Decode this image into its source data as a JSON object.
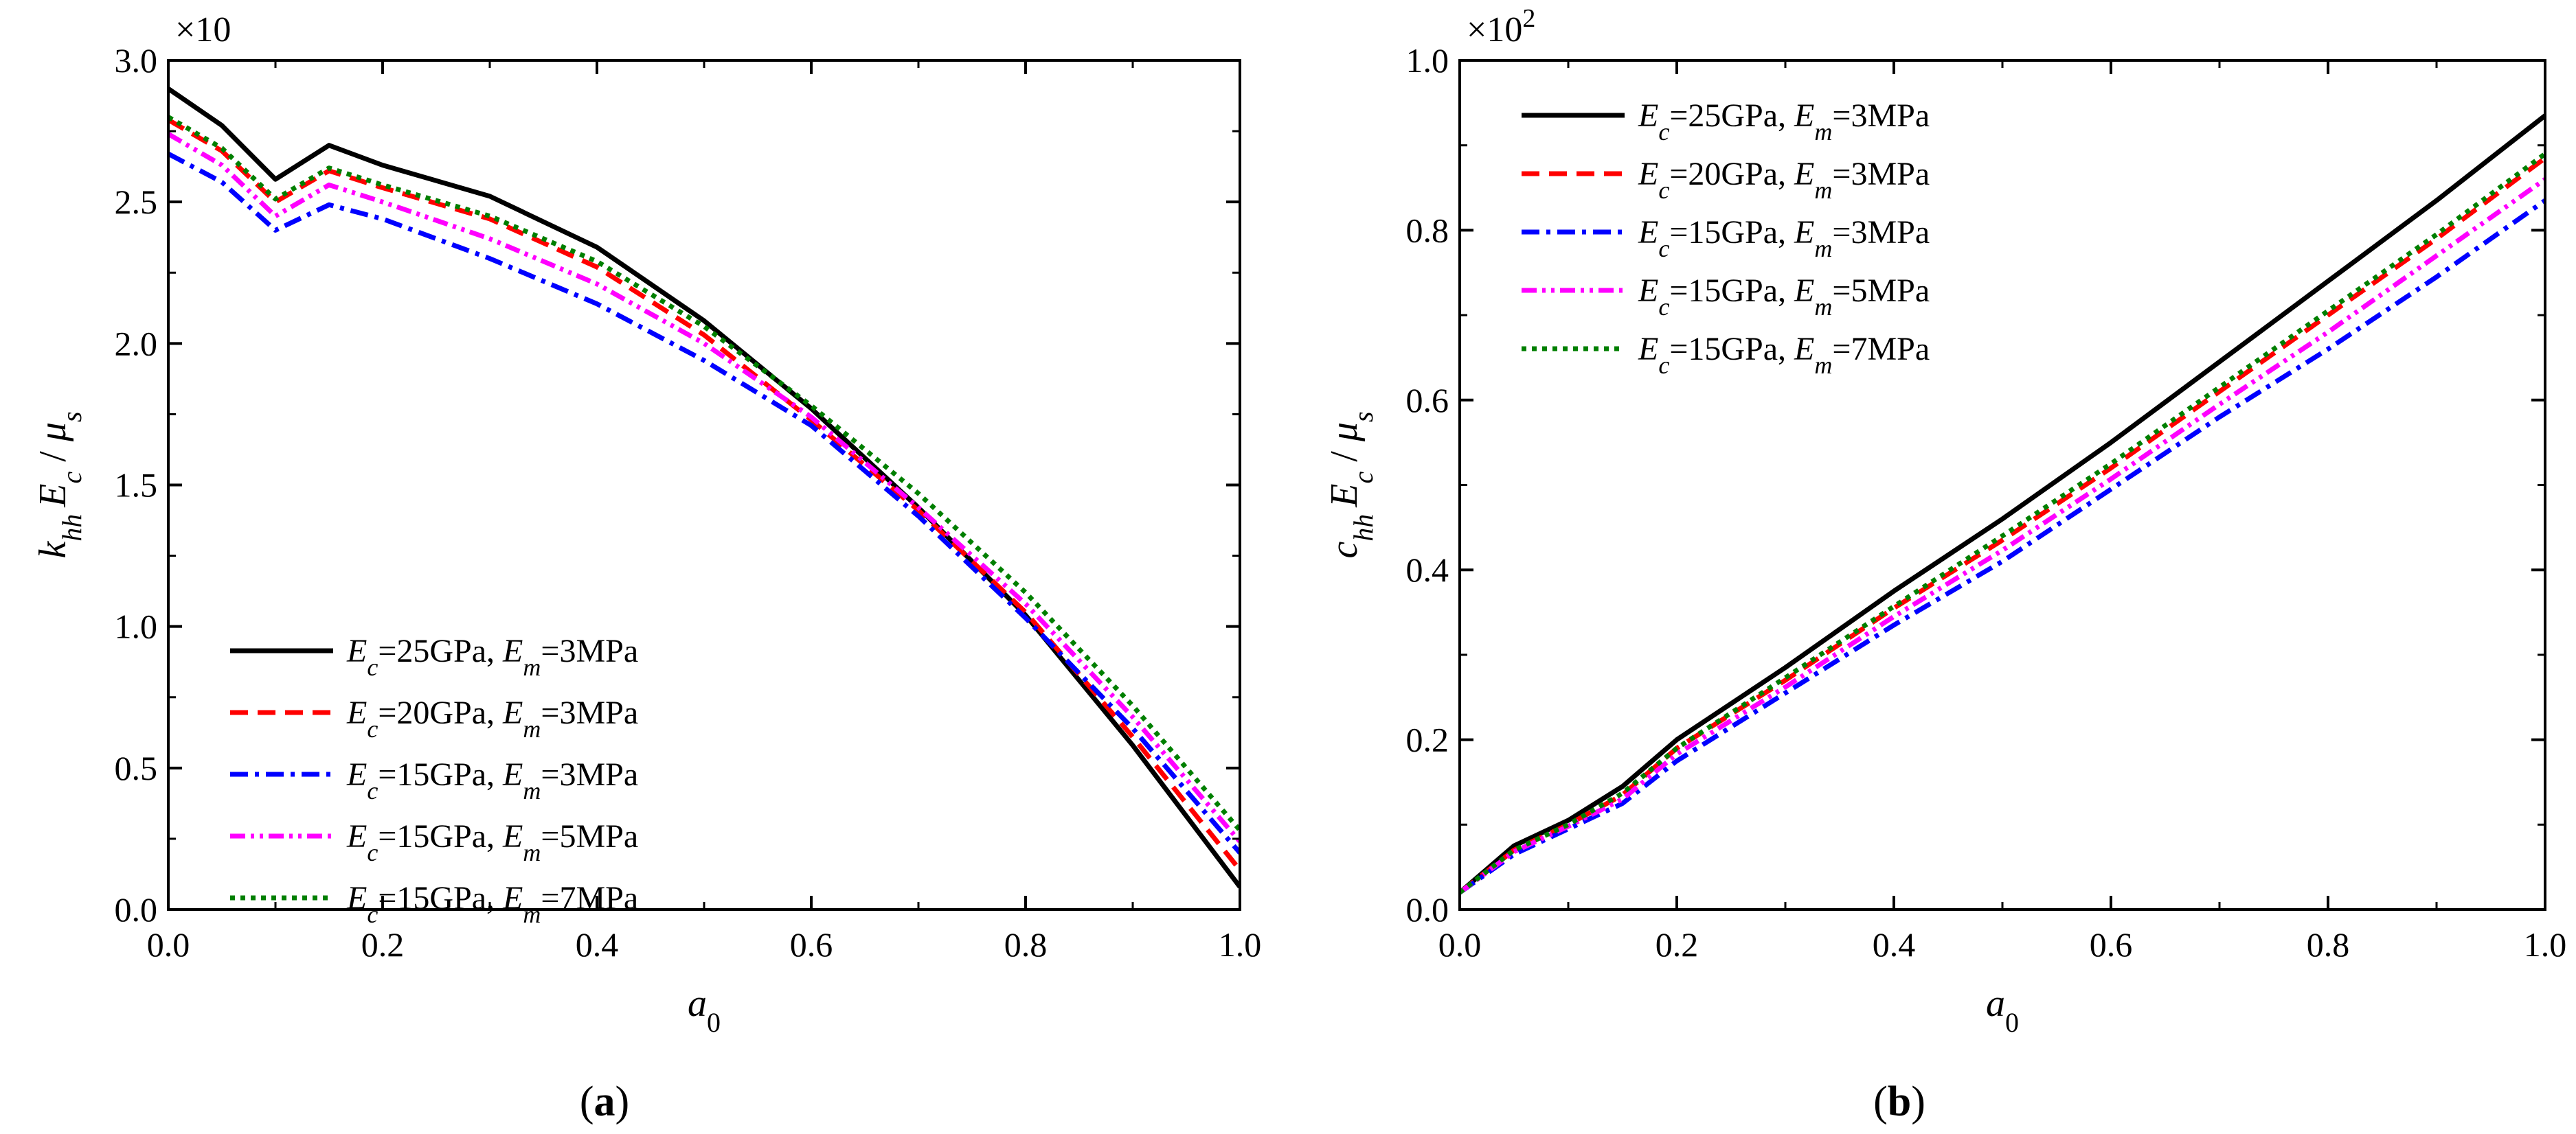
{
  "chart_data": [
    {
      "type": "line",
      "panel": "(a)",
      "panel_parts": {
        "open": "(",
        "letter": "a",
        "close": ")"
      },
      "ylabel": "k_hh E_c / μ_s",
      "ylabel_parts": {
        "a": "k",
        "a_sub": "hh",
        "b": "E",
        "b_sub": "c",
        "sep": " / ",
        "c": "μ",
        "c_sub": "s"
      },
      "xlabel": "a_0",
      "xlabel_parts": {
        "base": "a",
        "sub": "0"
      },
      "multiplier": "×10",
      "multiplier_parts": {
        "base": "×10",
        "exp": ""
      },
      "xlim": [
        0,
        1.0
      ],
      "ylim": [
        0,
        3.0
      ],
      "xticks": [
        "0.0",
        "0.2",
        "0.4",
        "0.6",
        "0.8",
        "1.0"
      ],
      "yticks": [
        "0.0",
        "0.5",
        "1.0",
        "1.5",
        "2.0",
        "2.5",
        "3.0"
      ],
      "legend_position": "lower-left",
      "series": [
        {
          "name": "Ec=25GPa, Em=3MPa",
          "label_parts": [
            "E",
            "c",
            "=25GPa, ",
            "E",
            "m",
            "=3MPa"
          ],
          "color": "#000000",
          "dash": "solid",
          "x": [
            0,
            0.05,
            0.1,
            0.15,
            0.2,
            0.3,
            0.4,
            0.5,
            0.6,
            0.7,
            0.8,
            0.9,
            1.0
          ],
          "y": [
            2.9,
            2.77,
            2.58,
            2.7,
            2.63,
            2.52,
            2.34,
            2.08,
            1.77,
            1.42,
            1.04,
            0.58,
            0.08
          ]
        },
        {
          "name": "Ec=20GPa, Em=3MPa",
          "label_parts": [
            "E",
            "c",
            "=20GPa, ",
            "E",
            "m",
            "=3MPa"
          ],
          "color": "#ff0000",
          "dash": "dash",
          "x": [
            0,
            0.05,
            0.1,
            0.15,
            0.2,
            0.3,
            0.4,
            0.5,
            0.6,
            0.7,
            0.8,
            0.9,
            1.0
          ],
          "y": [
            2.79,
            2.68,
            2.5,
            2.61,
            2.55,
            2.44,
            2.27,
            2.03,
            1.73,
            1.41,
            1.05,
            0.61,
            0.14
          ]
        },
        {
          "name": "Ec=15GPa, Em=3MPa",
          "label_parts": [
            "E",
            "c",
            "=15GPa, ",
            "E",
            "m",
            "=3MPa"
          ],
          "color": "#0000ff",
          "dash": "dashdot",
          "x": [
            0,
            0.05,
            0.1,
            0.15,
            0.2,
            0.3,
            0.4,
            0.5,
            0.6,
            0.7,
            0.8,
            0.9,
            1.0
          ],
          "y": [
            2.67,
            2.57,
            2.4,
            2.49,
            2.44,
            2.3,
            2.14,
            1.94,
            1.71,
            1.39,
            1.03,
            0.64,
            0.2
          ]
        },
        {
          "name": "Ec=15GPa, Em=5MPa",
          "label_parts": [
            "E",
            "c",
            "=15GPa, ",
            "E",
            "m",
            "=5MPa"
          ],
          "color": "#ff00ff",
          "dash": "dashdotdot",
          "x": [
            0,
            0.05,
            0.1,
            0.15,
            0.2,
            0.3,
            0.4,
            0.5,
            0.6,
            0.7,
            0.8,
            0.9,
            1.0
          ],
          "y": [
            2.74,
            2.63,
            2.45,
            2.56,
            2.5,
            2.37,
            2.21,
            2.0,
            1.74,
            1.42,
            1.08,
            0.68,
            0.24
          ]
        },
        {
          "name": "Ec=15GPa, Em=7MPa",
          "label_parts": [
            "E",
            "c",
            "=15GPa, ",
            "E",
            "m",
            "=7MPa"
          ],
          "color": "#007f00",
          "dash": "dot",
          "x": [
            0,
            0.05,
            0.1,
            0.15,
            0.2,
            0.3,
            0.4,
            0.5,
            0.6,
            0.7,
            0.8,
            0.9,
            1.0
          ],
          "y": [
            2.8,
            2.69,
            2.51,
            2.62,
            2.56,
            2.45,
            2.29,
            2.06,
            1.78,
            1.47,
            1.12,
            0.72,
            0.28
          ]
        }
      ]
    },
    {
      "type": "line",
      "panel": "(b)",
      "panel_parts": {
        "open": "(",
        "letter": "b",
        "close": ")"
      },
      "ylabel": "c_hh E_c / μ_s",
      "ylabel_parts": {
        "a": "c",
        "a_sub": "hh",
        "b": "E",
        "b_sub": "c",
        "sep": " / ",
        "c": "μ",
        "c_sub": "s"
      },
      "xlabel": "a_0",
      "xlabel_parts": {
        "base": "a",
        "sub": "0"
      },
      "multiplier": "×10^2",
      "multiplier_parts": {
        "base": "×10",
        "exp": "2"
      },
      "xlim": [
        0,
        1.0
      ],
      "ylim": [
        0,
        1.0
      ],
      "xticks": [
        "0.0",
        "0.2",
        "0.4",
        "0.6",
        "0.8",
        "1.0"
      ],
      "yticks": [
        "0.0",
        "0.2",
        "0.4",
        "0.6",
        "0.8",
        "1.0"
      ],
      "legend_position": "top-left",
      "series": [
        {
          "name": "Ec=25GPa, Em=3MPa",
          "label_parts": [
            "E",
            "c",
            "=25GPa, ",
            "E",
            "m",
            "=3MPa"
          ],
          "color": "#000000",
          "dash": "solid",
          "x": [
            0,
            0.05,
            0.1,
            0.15,
            0.2,
            0.3,
            0.4,
            0.5,
            0.6,
            0.7,
            0.8,
            0.9,
            1.0
          ],
          "y": [
            0.02,
            0.075,
            0.105,
            0.145,
            0.2,
            0.285,
            0.375,
            0.46,
            0.55,
            0.645,
            0.74,
            0.835,
            0.935
          ]
        },
        {
          "name": "Ec=20GPa, Em=3MPa",
          "label_parts": [
            "E",
            "c",
            "=20GPa, ",
            "E",
            "m",
            "=3MPa"
          ],
          "color": "#ff0000",
          "dash": "dash",
          "x": [
            0,
            0.05,
            0.1,
            0.15,
            0.2,
            0.3,
            0.4,
            0.5,
            0.6,
            0.7,
            0.8,
            0.9,
            1.0
          ],
          "y": [
            0.02,
            0.07,
            0.1,
            0.135,
            0.19,
            0.27,
            0.355,
            0.435,
            0.52,
            0.61,
            0.7,
            0.79,
            0.885
          ]
        },
        {
          "name": "Ec=15GPa, Em=3MPa",
          "label_parts": [
            "E",
            "c",
            "=15GPa, ",
            "E",
            "m",
            "=3MPa"
          ],
          "color": "#0000ff",
          "dash": "dashdot",
          "x": [
            0,
            0.05,
            0.1,
            0.15,
            0.2,
            0.3,
            0.4,
            0.5,
            0.6,
            0.7,
            0.8,
            0.9,
            1.0
          ],
          "y": [
            0.02,
            0.065,
            0.095,
            0.125,
            0.175,
            0.255,
            0.335,
            0.41,
            0.495,
            0.58,
            0.66,
            0.745,
            0.835
          ]
        },
        {
          "name": "Ec=15GPa, Em=5MPa",
          "label_parts": [
            "E",
            "c",
            "=15GPa, ",
            "E",
            "m",
            "=5MPa"
          ],
          "color": "#ff00ff",
          "dash": "dashdotdot",
          "x": [
            0,
            0.05,
            0.1,
            0.15,
            0.2,
            0.3,
            0.4,
            0.5,
            0.6,
            0.7,
            0.8,
            0.9,
            1.0
          ],
          "y": [
            0.02,
            0.068,
            0.098,
            0.13,
            0.183,
            0.262,
            0.345,
            0.423,
            0.507,
            0.595,
            0.68,
            0.77,
            0.86
          ]
        },
        {
          "name": "Ec=15GPa, Em=7MPa",
          "label_parts": [
            "E",
            "c",
            "=15GPa, ",
            "E",
            "m",
            "=7MPa"
          ],
          "color": "#007f00",
          "dash": "dot",
          "x": [
            0,
            0.05,
            0.1,
            0.15,
            0.2,
            0.3,
            0.4,
            0.5,
            0.6,
            0.7,
            0.8,
            0.9,
            1.0
          ],
          "y": [
            0.02,
            0.07,
            0.1,
            0.137,
            0.19,
            0.273,
            0.357,
            0.44,
            0.525,
            0.615,
            0.705,
            0.795,
            0.89
          ]
        }
      ]
    }
  ]
}
